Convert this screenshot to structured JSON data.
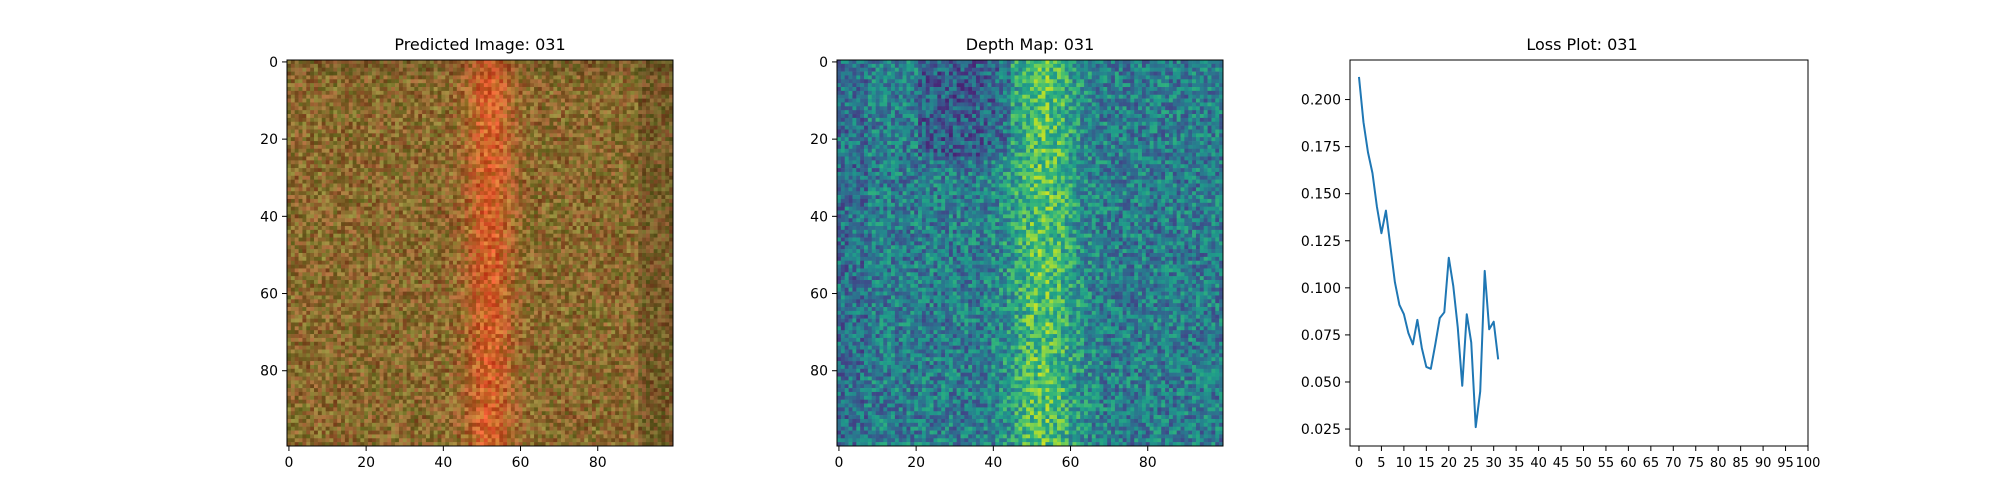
{
  "chart_data": [
    {
      "type": "heatmap",
      "title": "Predicted Image: 031",
      "xlabel": "",
      "ylabel": "",
      "xlim": [
        0,
        99
      ],
      "ylim": [
        99,
        0
      ],
      "x_ticks": [
        0,
        20,
        40,
        60,
        80
      ],
      "y_ticks": [
        0,
        20,
        40,
        60,
        80
      ],
      "grid": false,
      "colormap": "rgb",
      "base_color": "#8a6a2e",
      "stripe_color": "#d4622a",
      "stripe_center_col": 52
    },
    {
      "type": "heatmap",
      "title": "Depth Map: 031",
      "xlabel": "",
      "ylabel": "",
      "xlim": [
        0,
        99
      ],
      "ylim": [
        99,
        0
      ],
      "x_ticks": [
        0,
        20,
        40,
        60,
        80
      ],
      "y_ticks": [
        0,
        20,
        40,
        60,
        80
      ],
      "grid": false,
      "colormap": "viridis",
      "bright_band_center_col": 53
    },
    {
      "type": "line",
      "title": "Loss Plot: 031",
      "xlabel": "",
      "ylabel": "",
      "xlim": [
        -2,
        100
      ],
      "ylim": [
        0.016,
        0.221
      ],
      "x_ticks": [
        0,
        5,
        10,
        15,
        20,
        25,
        30,
        35,
        40,
        45,
        50,
        55,
        60,
        65,
        70,
        75,
        80,
        85,
        90,
        95,
        100
      ],
      "x_tick_labels": [
        "0",
        "5",
        "10",
        "15",
        "20",
        "25",
        "30",
        "35",
        "40",
        "45",
        "50",
        "55",
        "60",
        "65",
        "70",
        "75",
        "80",
        "85",
        "90",
        "95",
        "100"
      ],
      "y_ticks": [
        0.025,
        0.05,
        0.075,
        0.1,
        0.125,
        0.15,
        0.175,
        0.2
      ],
      "y_tick_labels": [
        "0.025",
        "0.050",
        "0.075",
        "0.100",
        "0.125",
        "0.150",
        "0.175",
        "0.200"
      ],
      "grid": false,
      "line_color": "#1f77b4",
      "x": [
        0,
        1,
        2,
        3,
        4,
        5,
        6,
        7,
        8,
        9,
        10,
        11,
        12,
        13,
        14,
        15,
        16,
        17,
        18,
        19,
        20,
        21,
        22,
        23,
        24,
        25,
        26,
        27,
        28,
        29,
        30,
        31
      ],
      "values": [
        0.212,
        0.188,
        0.172,
        0.161,
        0.143,
        0.129,
        0.141,
        0.122,
        0.103,
        0.091,
        0.086,
        0.076,
        0.07,
        0.083,
        0.068,
        0.058,
        0.057,
        0.07,
        0.084,
        0.087,
        0.116,
        0.101,
        0.079,
        0.048,
        0.086,
        0.071,
        0.026,
        0.045,
        0.109,
        0.078,
        0.082,
        0.062
      ]
    }
  ]
}
